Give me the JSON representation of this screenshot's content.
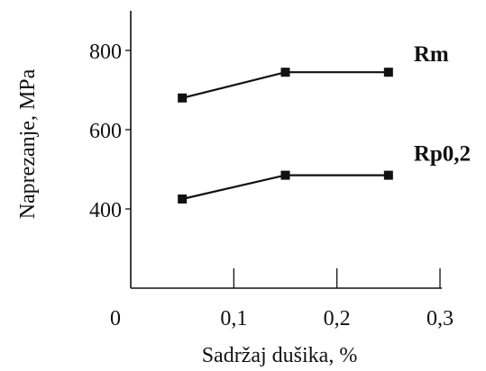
{
  "chart_data": {
    "type": "line",
    "title": "",
    "xlabel": "Sadržaj dušika, %",
    "ylabel": "Naprezanje, MPa",
    "x": [
      0.05,
      0.15,
      0.25
    ],
    "xlim": [
      0,
      0.3
    ],
    "ylim": [
      200,
      900
    ],
    "x_ticks": [
      {
        "value": 0,
        "label": "0"
      },
      {
        "value": 0.1,
        "label": "0,1"
      },
      {
        "value": 0.2,
        "label": "0,2"
      },
      {
        "value": 0.3,
        "label": "0,3"
      }
    ],
    "y_ticks": [
      {
        "value": 400,
        "label": "400"
      },
      {
        "value": 600,
        "label": "600"
      },
      {
        "value": 800,
        "label": "800"
      }
    ],
    "series": [
      {
        "name": "Rm",
        "values": [
          680,
          745,
          745
        ]
      },
      {
        "name": "Rp0,2",
        "values": [
          425,
          485,
          485
        ]
      }
    ],
    "grid": false,
    "legend": "inline at line ends"
  }
}
